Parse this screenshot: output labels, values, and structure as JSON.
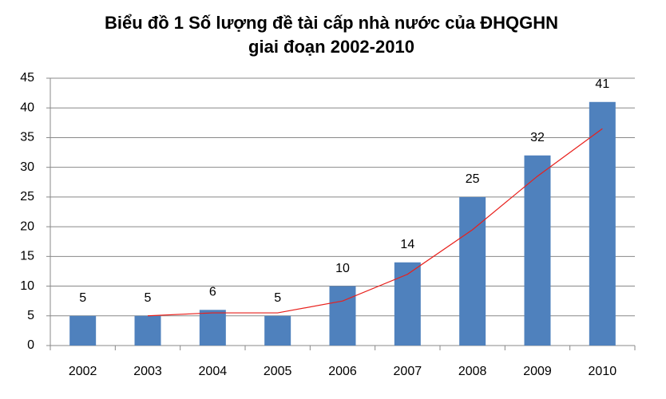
{
  "chart_data": {
    "type": "bar",
    "title": [
      "Biểu đồ 1   Số lượng đề tài cấp nhà nước của ĐHQGHN",
      "giai đoạn 2002-2010"
    ],
    "categories": [
      "2002",
      "2003",
      "2004",
      "2005",
      "2006",
      "2007",
      "2008",
      "2009",
      "2010"
    ],
    "series": [
      {
        "type": "bar",
        "color": "#4f81bd",
        "values": [
          5,
          5,
          6,
          5,
          10,
          14,
          25,
          32,
          41
        ]
      },
      {
        "type": "line",
        "color": "#e8201c",
        "values": [
          null,
          5,
          5.5,
          5.5,
          7.5,
          12,
          19.5,
          28.5,
          36.5
        ]
      }
    ],
    "ylim": [
      0,
      45
    ],
    "yticks": [
      0,
      5,
      10,
      15,
      20,
      25,
      30,
      35,
      40,
      45
    ],
    "grid": true
  }
}
